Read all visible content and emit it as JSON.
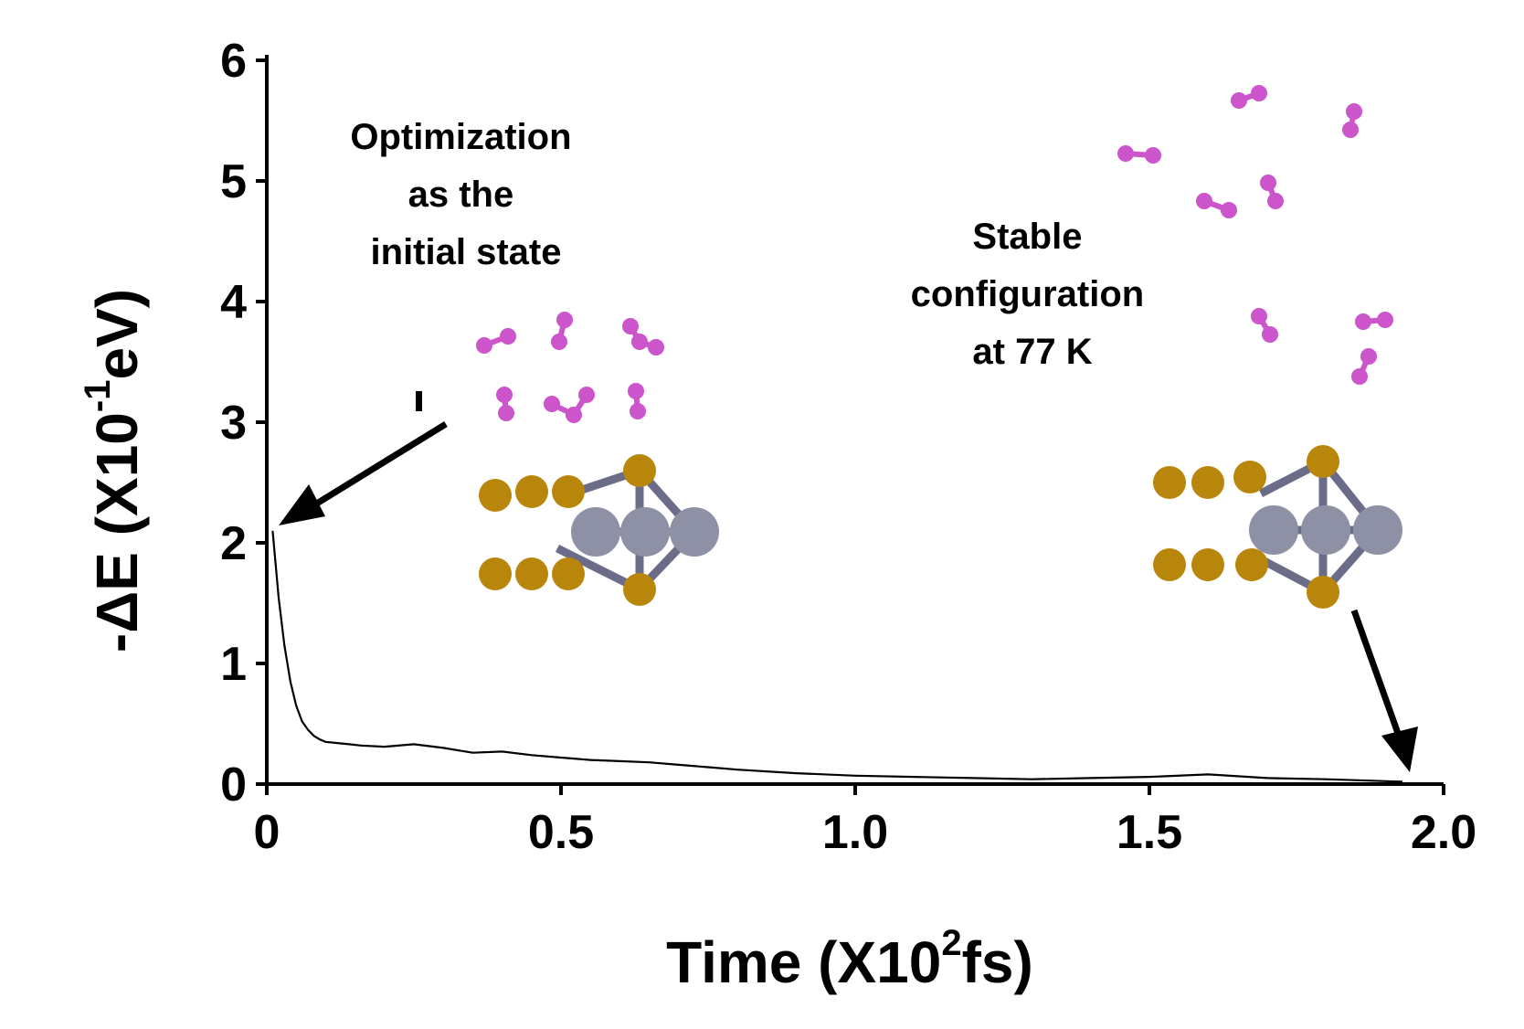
{
  "chart_data": {
    "type": "line",
    "title": "",
    "xlabel": {
      "text": "Time (X10",
      "sup": "2",
      "unit": "fs)"
    },
    "ylabel": {
      "text": "-ΔE (X10",
      "sup": "-1",
      "unit": "eV)"
    },
    "xlim": [
      0,
      2.0
    ],
    "ylim": [
      0,
      6
    ],
    "x_ticks": [
      0,
      0.5,
      1.0,
      1.5,
      2.0
    ],
    "x_tick_labels": [
      "0",
      "0.5",
      "1.0",
      "1.5",
      "2.0"
    ],
    "y_ticks": [
      0,
      1,
      2,
      3,
      4,
      5,
      6
    ],
    "y_tick_labels": [
      "0",
      "1",
      "2",
      "3",
      "4",
      "5",
      "6"
    ],
    "grid": false,
    "series": [
      {
        "name": "-ΔE",
        "color": "#000000",
        "x": [
          0.01,
          0.02,
          0.03,
          0.04,
          0.05,
          0.06,
          0.07,
          0.08,
          0.09,
          0.1,
          0.12,
          0.14,
          0.16,
          0.2,
          0.25,
          0.3,
          0.35,
          0.4,
          0.45,
          0.5,
          0.55,
          0.6,
          0.65,
          0.7,
          0.75,
          0.8,
          0.9,
          1.0,
          1.1,
          1.2,
          1.3,
          1.4,
          1.5,
          1.6,
          1.7,
          1.8,
          1.93
        ],
        "y": [
          2.1,
          1.55,
          1.15,
          0.85,
          0.65,
          0.52,
          0.45,
          0.4,
          0.37,
          0.35,
          0.34,
          0.33,
          0.32,
          0.31,
          0.33,
          0.3,
          0.26,
          0.27,
          0.24,
          0.22,
          0.2,
          0.19,
          0.18,
          0.16,
          0.14,
          0.12,
          0.09,
          0.07,
          0.06,
          0.05,
          0.04,
          0.05,
          0.06,
          0.08,
          0.05,
          0.04,
          0.02
        ]
      }
    ],
    "annotations": [
      {
        "lines": [
          "Optimization",
          "as the",
          "initial state"
        ],
        "points_to": {
          "x": 0.02,
          "y": 2.15
        }
      },
      {
        "lines": [
          "Stable",
          "configuration",
          "at 77 K"
        ],
        "points_to": {
          "x": 1.93,
          "y": 0.03
        }
      }
    ]
  },
  "colors": {
    "line": "#000000",
    "substrate": "#b8860b",
    "metal": "#8e90a6",
    "molecule": "#cc55cc",
    "bond": "#6a6c88"
  }
}
